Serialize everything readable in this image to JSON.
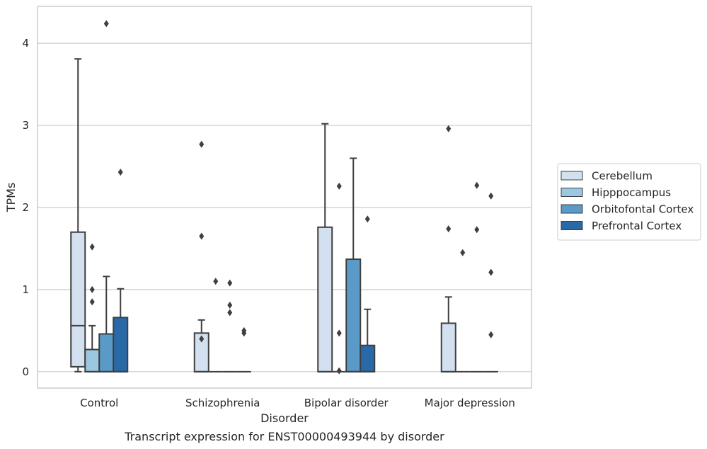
{
  "chart_data": {
    "type": "box",
    "caption": "Transcript expression for ENST00000493944 by disorder",
    "xlabel": "Disorder",
    "ylabel": "TPMs",
    "ylim": [
      -0.2,
      4.45
    ],
    "yticks": [
      0,
      1,
      2,
      3,
      4
    ],
    "grid": "horizontal",
    "legend_position": "right",
    "categories": [
      "Control",
      "Schizophrenia",
      "Bipolar disorder",
      "Major depression"
    ],
    "series": [
      {
        "name": "Cerebellum",
        "color": "#d2e0ef",
        "boxes": [
          {
            "whisker_low": 0.0,
            "q1": 0.06,
            "median": 0.56,
            "q3": 1.7,
            "whisker_high": 3.81,
            "outliers": []
          },
          {
            "whisker_low": 0.0,
            "q1": 0.0,
            "median": 0.0,
            "q3": 0.47,
            "whisker_high": 0.63,
            "outliers": [
              2.77,
              1.65,
              0.4
            ]
          },
          {
            "whisker_low": 0.0,
            "q1": 0.0,
            "median": 0.0,
            "q3": 1.76,
            "whisker_high": 3.02,
            "outliers": []
          },
          {
            "whisker_low": 0.0,
            "q1": 0.0,
            "median": 0.0,
            "q3": 0.59,
            "whisker_high": 0.91,
            "outliers": [
              2.96,
              1.74
            ]
          }
        ]
      },
      {
        "name": "Hipppocampus",
        "color": "#9ac8e0",
        "boxes": [
          {
            "whisker_low": 0.0,
            "q1": 0.0,
            "median": 0.0,
            "q3": 0.27,
            "whisker_high": 0.56,
            "outliers": [
              1.52,
              1.0,
              0.85
            ]
          },
          {
            "whisker_low": 0.0,
            "q1": 0.0,
            "median": 0.0,
            "q3": 0.0,
            "whisker_high": 0.0,
            "outliers": [
              1.1
            ]
          },
          {
            "whisker_low": 0.0,
            "q1": 0.0,
            "median": 0.0,
            "q3": 0.0,
            "whisker_high": 0.0,
            "outliers": [
              2.26,
              0.47,
              0.01
            ]
          },
          {
            "whisker_low": 0.0,
            "q1": 0.0,
            "median": 0.0,
            "q3": 0.0,
            "whisker_high": 0.0,
            "outliers": [
              1.45
            ]
          }
        ]
      },
      {
        "name": "Orbitofontal Cortex",
        "color": "#5a9ac8",
        "boxes": [
          {
            "whisker_low": 0.0,
            "q1": 0.0,
            "median": 0.0,
            "q3": 0.46,
            "whisker_high": 1.16,
            "outliers": [
              4.24
            ]
          },
          {
            "whisker_low": 0.0,
            "q1": 0.0,
            "median": 0.0,
            "q3": 0.0,
            "whisker_high": 0.0,
            "outliers": [
              1.08,
              0.81,
              0.72
            ]
          },
          {
            "whisker_low": 0.0,
            "q1": 0.0,
            "median": 0.0,
            "q3": 1.37,
            "whisker_high": 2.6,
            "outliers": []
          },
          {
            "whisker_low": 0.0,
            "q1": 0.0,
            "median": 0.0,
            "q3": 0.0,
            "whisker_high": 0.0,
            "outliers": [
              2.27,
              1.73
            ]
          }
        ]
      },
      {
        "name": "Prefrontal Cortex",
        "color": "#2a69a8",
        "boxes": [
          {
            "whisker_low": 0.0,
            "q1": 0.0,
            "median": 0.0,
            "q3": 0.66,
            "whisker_high": 1.01,
            "outliers": [
              2.43
            ]
          },
          {
            "whisker_low": 0.0,
            "q1": 0.0,
            "median": 0.0,
            "q3": 0.0,
            "whisker_high": 0.0,
            "outliers": [
              0.5,
              0.47
            ]
          },
          {
            "whisker_low": 0.0,
            "q1": 0.0,
            "median": 0.0,
            "q3": 0.32,
            "whisker_high": 0.76,
            "outliers": [
              1.86
            ]
          },
          {
            "whisker_low": 0.0,
            "q1": 0.0,
            "median": 0.0,
            "q3": 0.0,
            "whisker_high": 0.0,
            "outliers": [
              2.14,
              1.21,
              0.45
            ]
          }
        ]
      }
    ]
  },
  "colors": {
    "grid": "#cccccc",
    "frame": "#cccccc",
    "box_edge": "#3f3f3f"
  }
}
